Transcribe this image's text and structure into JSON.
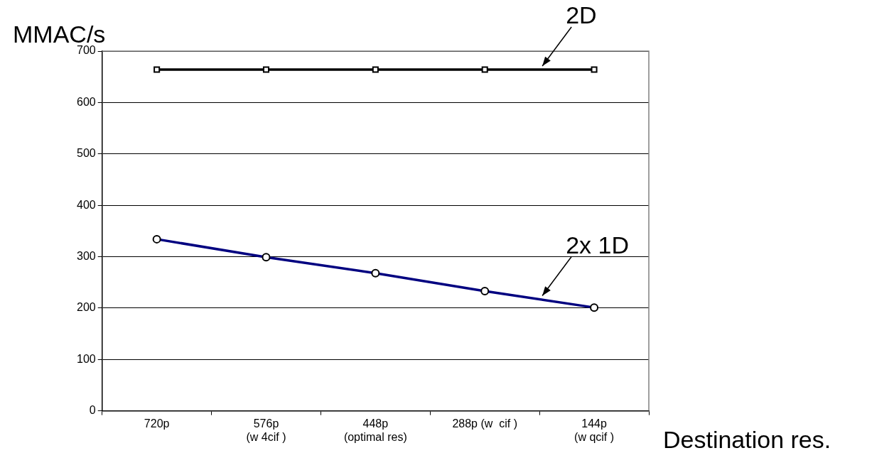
{
  "chart_data": {
    "type": "line",
    "xlabel": "Destination res.",
    "ylabel": "MMAC/s",
    "categories": [
      "720p",
      "576p\n(w 4cif )",
      "448p\n(optimal res)",
      "288p (w  cif )",
      "144p\n(w qcif )"
    ],
    "series": [
      {
        "name": "2D",
        "color": "#000000",
        "marker": "square",
        "values": [
          664,
          664,
          664,
          664,
          664
        ]
      },
      {
        "name": "2x 1D",
        "color": "#000080",
        "marker": "circle",
        "values": [
          334,
          299,
          268,
          233,
          201
        ]
      }
    ],
    "ylim": [
      0,
      700
    ],
    "yticks": [
      0,
      100,
      200,
      300,
      400,
      500,
      600,
      700
    ],
    "grid": "y",
    "legend": false
  }
}
